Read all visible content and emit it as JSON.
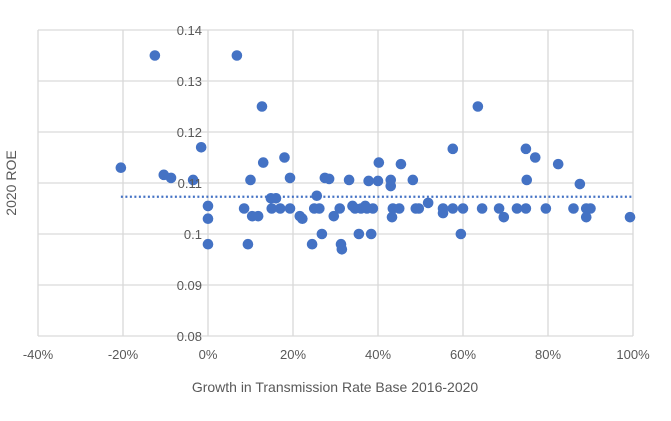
{
  "chart_data": {
    "type": "scatter",
    "title": "",
    "xlabel": "Growth in Transmission Rate Base 2016-2020",
    "ylabel": "2020 ROE",
    "xlim": [
      -40,
      100
    ],
    "ylim": [
      0.08,
      0.14
    ],
    "x_unit": "%",
    "x_ticks": [
      "-40%",
      "-20%",
      "0%",
      "20%",
      "40%",
      "60%",
      "80%",
      "100%"
    ],
    "x_tick_values": [
      -40,
      -20,
      0,
      20,
      40,
      60,
      80,
      100
    ],
    "y_ticks": [
      "0.08",
      "0.09",
      "0.1",
      "0.11",
      "0.12",
      "0.13",
      "0.14"
    ],
    "y_tick_values": [
      0.08,
      0.09,
      0.1,
      0.11,
      0.12,
      0.13,
      0.14
    ],
    "grid": true,
    "y_axis_crosses_at_x": 0,
    "marker_color": "#4472C4",
    "reference_line": {
      "style": "dotted",
      "y": 0.1073,
      "x_range": [
        -20.5,
        100
      ],
      "color": "#4472C4"
    },
    "points": [
      [
        -20.5,
        0.113
      ],
      [
        -12.5,
        0.135
      ],
      [
        -10.4,
        0.1116
      ],
      [
        -8.7,
        0.111
      ],
      [
        -3.5,
        0.1106
      ],
      [
        -1.6,
        0.117
      ],
      [
        0,
        0.1055
      ],
      [
        0,
        0.103
      ],
      [
        0,
        0.098
      ],
      [
        6.8,
        0.135
      ],
      [
        8.5,
        0.105
      ],
      [
        9.4,
        0.098
      ],
      [
        10,
        0.1106
      ],
      [
        10.4,
        0.1035
      ],
      [
        11.8,
        0.1035
      ],
      [
        12.7,
        0.125
      ],
      [
        13,
        0.114
      ],
      [
        14.8,
        0.107
      ],
      [
        15,
        0.105
      ],
      [
        16,
        0.107
      ],
      [
        17,
        0.105
      ],
      [
        18,
        0.115
      ],
      [
        19.3,
        0.111
      ],
      [
        19.3,
        0.105
      ],
      [
        21.6,
        0.1035
      ],
      [
        22.2,
        0.103
      ],
      [
        24.5,
        0.098
      ],
      [
        25,
        0.105
      ],
      [
        25.6,
        0.1075
      ],
      [
        26.2,
        0.105
      ],
      [
        26.8,
        0.1
      ],
      [
        27.5,
        0.111
      ],
      [
        28.5,
        0.1108
      ],
      [
        29.6,
        0.1035
      ],
      [
        31,
        0.105
      ],
      [
        31.3,
        0.098
      ],
      [
        31.5,
        0.097
      ],
      [
        33.2,
        0.1106
      ],
      [
        34,
        0.1055
      ],
      [
        34.6,
        0.105
      ],
      [
        35.5,
        0.1
      ],
      [
        36,
        0.105
      ],
      [
        37,
        0.1055
      ],
      [
        37.4,
        0.105
      ],
      [
        37.8,
        0.1104
      ],
      [
        38.4,
        0.1
      ],
      [
        38.8,
        0.105
      ],
      [
        40,
        0.1104
      ],
      [
        40.2,
        0.114
      ],
      [
        43,
        0.1106
      ],
      [
        43,
        0.1094
      ],
      [
        43.3,
        0.1033
      ],
      [
        43.5,
        0.105
      ],
      [
        45,
        0.105
      ],
      [
        45.4,
        0.1137
      ],
      [
        48.2,
        0.1106
      ],
      [
        48.9,
        0.105
      ],
      [
        49.6,
        0.105
      ],
      [
        51.8,
        0.1061
      ],
      [
        55.3,
        0.105
      ],
      [
        55.3,
        0.1041
      ],
      [
        57.6,
        0.1167
      ],
      [
        57.6,
        0.105
      ],
      [
        59.5,
        0.1
      ],
      [
        60,
        0.105
      ],
      [
        63.5,
        0.125
      ],
      [
        64.5,
        0.105
      ],
      [
        68.5,
        0.105
      ],
      [
        69.6,
        0.1033
      ],
      [
        72.7,
        0.105
      ],
      [
        74.8,
        0.1167
      ],
      [
        74.8,
        0.105
      ],
      [
        75,
        0.1106
      ],
      [
        77,
        0.115
      ],
      [
        79.5,
        0.105
      ],
      [
        82.4,
        0.1137
      ],
      [
        86,
        0.105
      ],
      [
        87.5,
        0.1098
      ],
      [
        89,
        0.105
      ],
      [
        89,
        0.1033
      ],
      [
        90,
        0.105
      ],
      [
        99.3,
        0.1033
      ]
    ]
  }
}
